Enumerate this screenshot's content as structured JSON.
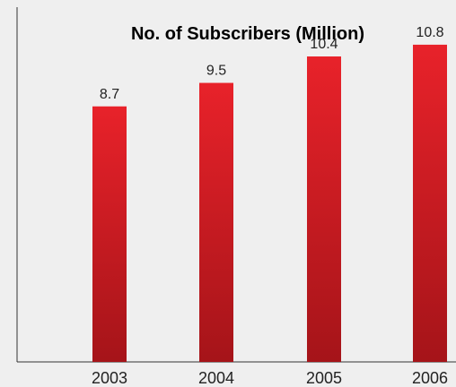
{
  "chart_data": {
    "type": "bar",
    "title": "No. of Subscribers (Million)",
    "categories": [
      "2003",
      "2004",
      "2005",
      "2006"
    ],
    "values": [
      8.7,
      9.5,
      10.4,
      10.8
    ],
    "value_labels": [
      "8.7",
      "9.5",
      "10.4",
      "10.8"
    ],
    "xlabel": "",
    "ylabel": "",
    "ylim": [
      0,
      12.2
    ],
    "grid": false,
    "legend": "none",
    "bar_color_top": "#e8222a",
    "bar_color_bottom": "#a51419",
    "background_color": "#efefef"
  }
}
